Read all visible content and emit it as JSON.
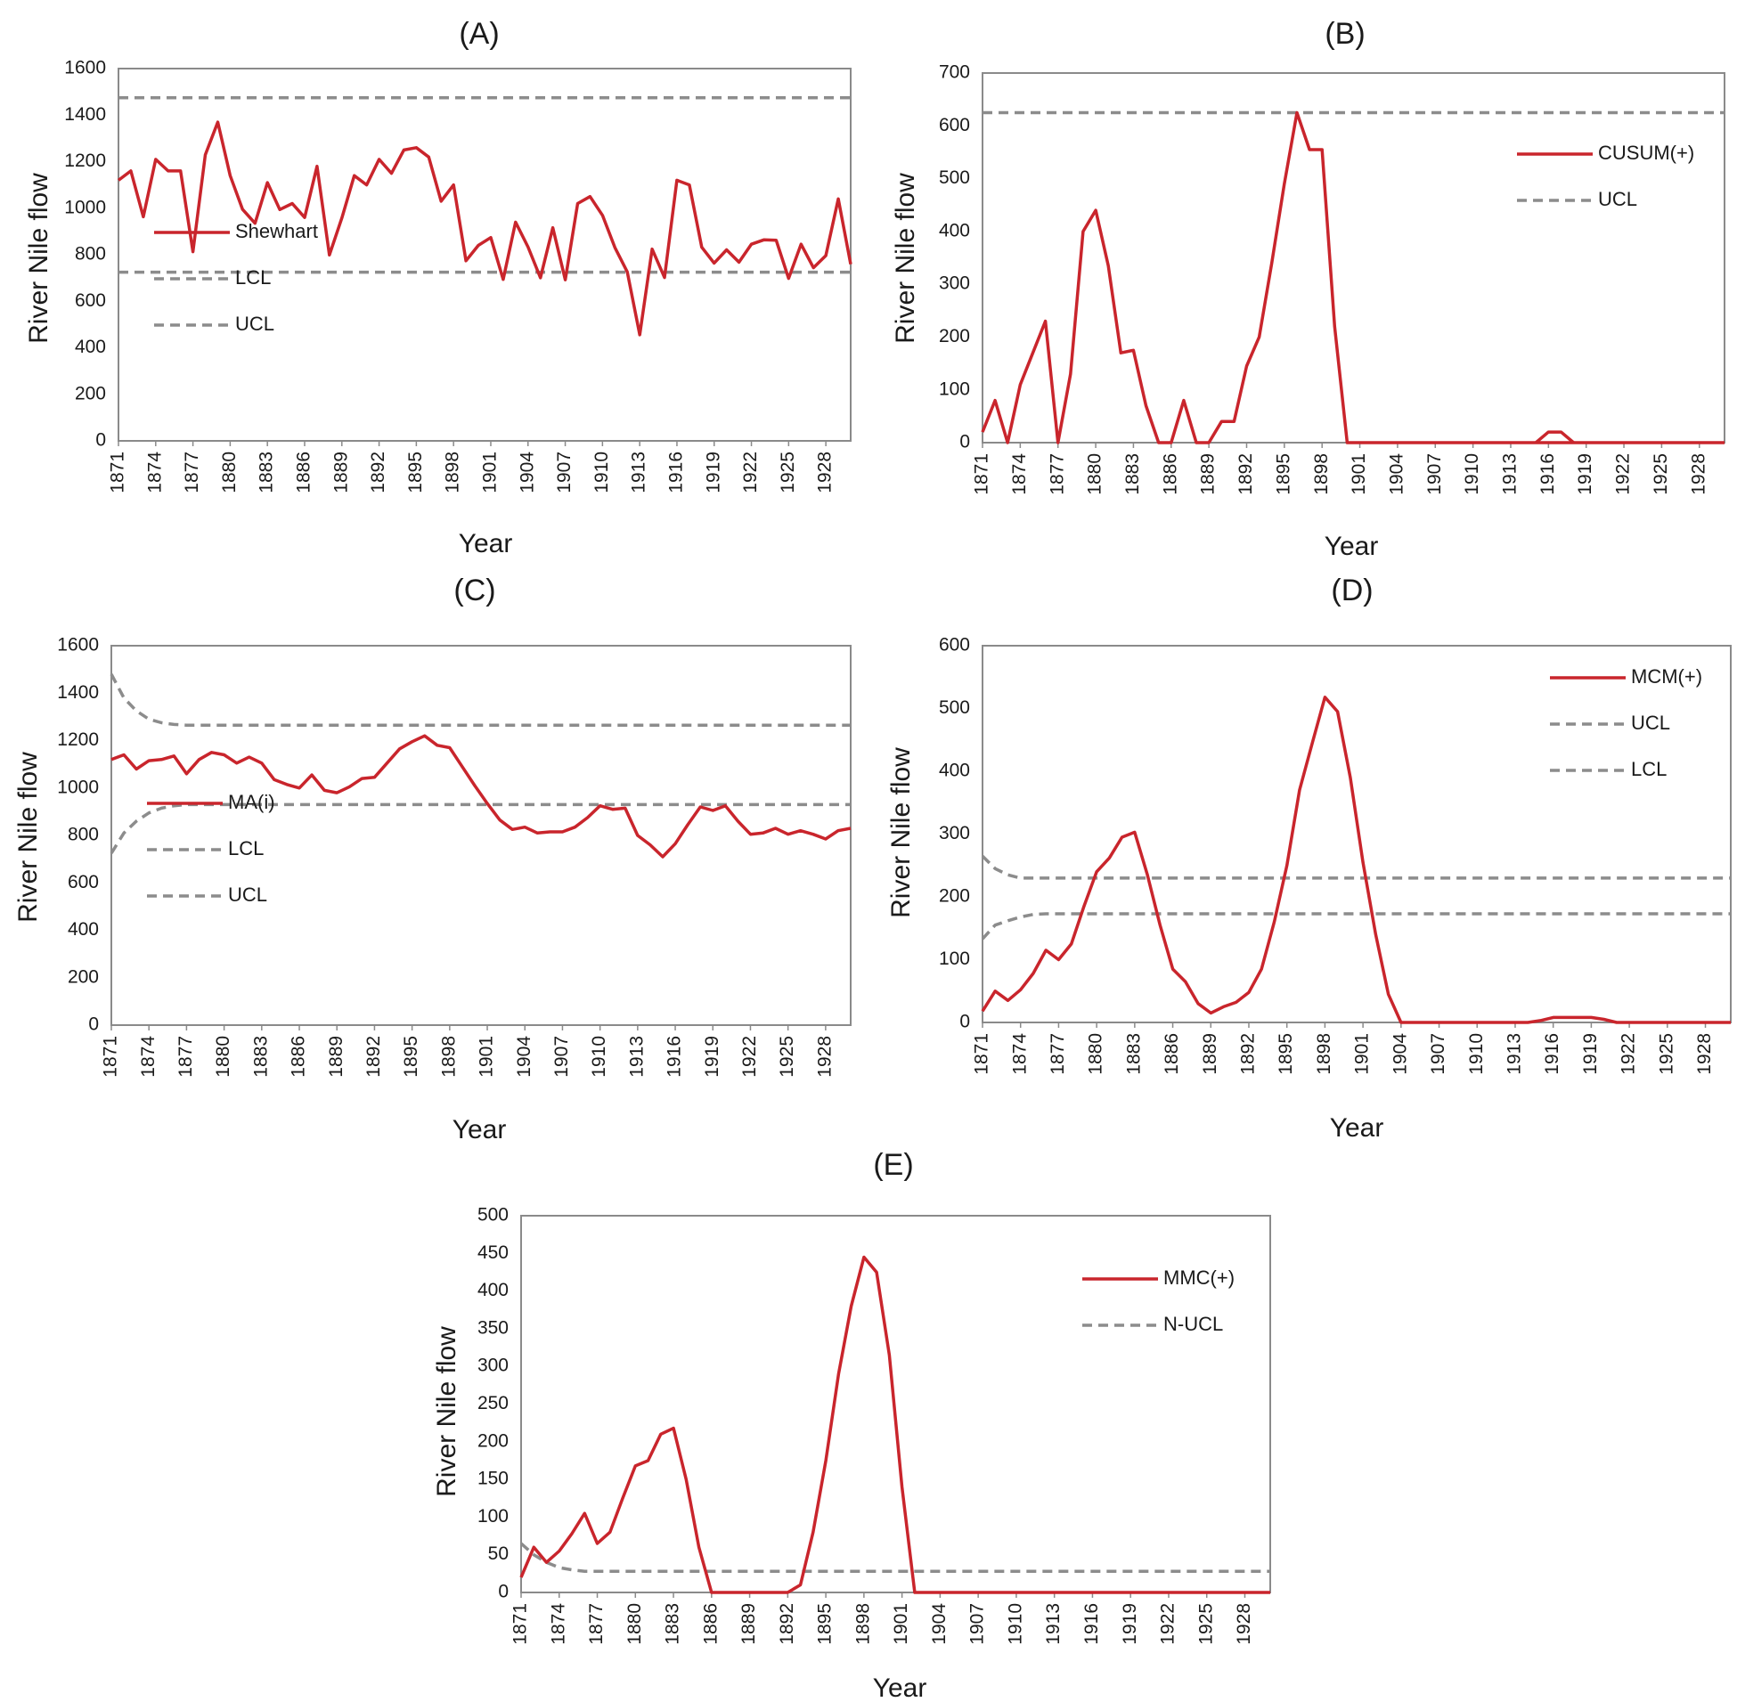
{
  "chart_data": [
    {
      "panel": "(A)",
      "type": "line",
      "ylabel": "River Nile flow",
      "xlabel": "Year",
      "ylim": [
        0,
        1600
      ],
      "yticks": [
        0,
        200,
        400,
        600,
        800,
        1000,
        1200,
        1400,
        1600
      ],
      "xtick_labels": [
        "1871",
        "1874",
        "1877",
        "1880",
        "1883",
        "1886",
        "1889",
        "1892",
        "1895",
        "1898",
        "1901",
        "1904",
        "1907",
        "1910",
        "1913",
        "1916",
        "1919",
        "1922",
        "1925",
        "1928"
      ],
      "legend_position": "bottom-left",
      "series": [
        {
          "name": "Shewhart",
          "style": "solid",
          "color": "#c9252c",
          "x": [
            1871,
            1872,
            1873,
            1874,
            1875,
            1876,
            1877,
            1878,
            1879,
            1880,
            1881,
            1882,
            1883,
            1884,
            1885,
            1886,
            1887,
            1888,
            1889,
            1890,
            1891,
            1892,
            1893,
            1894,
            1895,
            1896,
            1897,
            1898,
            1899,
            1900,
            1901,
            1902,
            1903,
            1904,
            1905,
            1906,
            1907,
            1908,
            1909,
            1910,
            1911,
            1912,
            1913,
            1914,
            1915,
            1916,
            1917,
            1918,
            1919,
            1920,
            1921,
            1922,
            1923,
            1924,
            1925,
            1926,
            1927,
            1928,
            1929,
            1930
          ],
          "y": [
            1120,
            1160,
            963,
            1210,
            1160,
            1160,
            813,
            1230,
            1370,
            1140,
            995,
            935,
            1110,
            994,
            1020,
            960,
            1180,
            799,
            958,
            1140,
            1100,
            1210,
            1150,
            1250,
            1260,
            1220,
            1030,
            1100,
            774,
            840,
            874,
            694,
            940,
            833,
            701,
            916,
            692,
            1020,
            1050,
            969,
            831,
            726,
            456,
            824,
            702,
            1120,
            1100,
            832,
            764,
            821,
            768,
            845,
            864,
            862,
            698,
            845,
            744,
            796,
            1040,
            759
          ]
        },
        {
          "name": "LCL",
          "style": "dashed",
          "color": "#8c8c8c",
          "x": [
            1871,
            1930
          ],
          "y": [
            725,
            725
          ]
        },
        {
          "name": "UCL",
          "style": "dashed",
          "color": "#8c8c8c",
          "x": [
            1871,
            1930
          ],
          "y": [
            1475,
            1475
          ]
        }
      ]
    },
    {
      "panel": "(B)",
      "type": "line",
      "ylabel": "River Nile flow",
      "xlabel": "Year",
      "ylim": [
        0,
        700
      ],
      "yticks": [
        0,
        100,
        200,
        300,
        400,
        500,
        600,
        700
      ],
      "xtick_labels": [
        "1871",
        "1874",
        "1877",
        "1880",
        "1883",
        "1886",
        "1889",
        "1892",
        "1895",
        "1898",
        "1901",
        "1904",
        "1907",
        "1910",
        "1913",
        "1916",
        "1919",
        "1922",
        "1925",
        "1928"
      ],
      "legend_position": "top-right",
      "series": [
        {
          "name": "CUSUM(+)",
          "style": "solid",
          "color": "#c9252c",
          "x": [
            1871,
            1872,
            1873,
            1874,
            1875,
            1876,
            1877,
            1878,
            1879,
            1880,
            1881,
            1882,
            1883,
            1884,
            1885,
            1886,
            1887,
            1888,
            1889,
            1890,
            1891,
            1892,
            1893,
            1894,
            1895,
            1896,
            1897,
            1898,
            1899,
            1900,
            1930
          ],
          "y": [
            20,
            80,
            0,
            110,
            170,
            230,
            0,
            130,
            400,
            440,
            335,
            170,
            175,
            70,
            0,
            0,
            80,
            0,
            0,
            40,
            40,
            145,
            200,
            340,
            490,
            625,
            555,
            555,
            220,
            0,
            0
          ],
          "extra": {
            "x": [
              1915,
              1916,
              1917,
              1918
            ],
            "y": [
              0,
              20,
              20,
              0
            ]
          }
        },
        {
          "name": "UCL",
          "style": "dashed",
          "color": "#8c8c8c",
          "x": [
            1871,
            1930
          ],
          "y": [
            625,
            625
          ]
        }
      ]
    },
    {
      "panel": "(C)",
      "type": "line",
      "ylabel": "River Nile flow",
      "xlabel": "Year",
      "ylim": [
        0,
        1600
      ],
      "yticks": [
        0,
        200,
        400,
        600,
        800,
        1000,
        1200,
        1400,
        1600
      ],
      "xtick_labels": [
        "1871",
        "1874",
        "1877",
        "1880",
        "1883",
        "1886",
        "1889",
        "1892",
        "1895",
        "1898",
        "1901",
        "1904",
        "1907",
        "1910",
        "1913",
        "1916",
        "1919",
        "1922",
        "1925",
        "1928"
      ],
      "legend_position": "bottom-left",
      "series": [
        {
          "name": "MA(i)",
          "style": "solid",
          "color": "#c9252c",
          "x": [
            1871,
            1872,
            1873,
            1874,
            1875,
            1876,
            1877,
            1878,
            1879,
            1880,
            1881,
            1882,
            1883,
            1884,
            1885,
            1886,
            1887,
            1888,
            1889,
            1890,
            1891,
            1892,
            1893,
            1894,
            1895,
            1896,
            1897,
            1898,
            1899,
            1900,
            1901,
            1902,
            1903,
            1904,
            1905,
            1906,
            1907,
            1908,
            1909,
            1910,
            1911,
            1912,
            1913,
            1914,
            1915,
            1916,
            1917,
            1918,
            1919,
            1920,
            1921,
            1922,
            1923,
            1924,
            1925,
            1926,
            1927,
            1928,
            1929,
            1930
          ],
          "y": [
            1120,
            1140,
            1080,
            1115,
            1120,
            1135,
            1060,
            1120,
            1150,
            1140,
            1105,
            1130,
            1105,
            1035,
            1015,
            1000,
            1055,
            990,
            980,
            1005,
            1040,
            1045,
            1105,
            1165,
            1195,
            1220,
            1180,
            1170,
            1090,
            1010,
            935,
            865,
            825,
            835,
            810,
            815,
            815,
            835,
            875,
            925,
            910,
            915,
            800,
            760,
            710,
            765,
            845,
            920,
            905,
            925,
            860,
            805,
            810,
            830,
            805,
            820,
            805,
            785,
            820,
            830
          ]
        },
        {
          "name": "LCL",
          "style": "dashed",
          "color": "#8c8c8c",
          "x": [
            1871,
            1872,
            1873,
            1874,
            1875,
            1876,
            1877,
            1878,
            1930
          ],
          "y": [
            725,
            810,
            860,
            895,
            915,
            925,
            930,
            930,
            930
          ]
        },
        {
          "name": "UCL",
          "style": "dashed",
          "color": "#8c8c8c",
          "x": [
            1871,
            1872,
            1873,
            1874,
            1875,
            1876,
            1877,
            1878,
            1930
          ],
          "y": [
            1480,
            1380,
            1325,
            1290,
            1275,
            1268,
            1265,
            1265,
            1265
          ]
        }
      ]
    },
    {
      "panel": "(D)",
      "type": "line",
      "ylabel": "River Nile flow",
      "xlabel": "Year",
      "ylim": [
        0,
        600
      ],
      "yticks": [
        0,
        100,
        200,
        300,
        400,
        500,
        600
      ],
      "xtick_labels": [
        "1871",
        "1874",
        "1877",
        "1880",
        "1883",
        "1886",
        "1889",
        "1892",
        "1895",
        "1898",
        "1901",
        "1904",
        "1907",
        "1910",
        "1913",
        "1916",
        "1919",
        "1922",
        "1925",
        "1928"
      ],
      "legend_position": "top-right",
      "series": [
        {
          "name": "MCM(+)",
          "style": "solid",
          "color": "#c9252c",
          "x": [
            1871,
            1872,
            1873,
            1874,
            1875,
            1876,
            1877,
            1878,
            1879,
            1880,
            1881,
            1882,
            1883,
            1884,
            1885,
            1886,
            1887,
            1888,
            1889,
            1890,
            1891,
            1892,
            1893,
            1894,
            1895,
            1896,
            1897,
            1898,
            1899,
            1900,
            1901,
            1902,
            1903,
            1904,
            1914,
            1915,
            1916,
            1917,
            1918,
            1919,
            1920,
            1921,
            1930
          ],
          "y": [
            18,
            50,
            35,
            52,
            78,
            115,
            100,
            125,
            185,
            240,
            262,
            295,
            303,
            235,
            155,
            85,
            65,
            30,
            15,
            25,
            32,
            48,
            85,
            160,
            250,
            370,
            445,
            518,
            495,
            390,
            255,
            140,
            45,
            0,
            0,
            3,
            8,
            8,
            8,
            8,
            5,
            0,
            0
          ]
        },
        {
          "name": "UCL",
          "style": "dashed",
          "color": "#8c8c8c",
          "x": [
            1871,
            1872,
            1873,
            1874,
            1875,
            1876,
            1930
          ],
          "y": [
            265,
            245,
            235,
            230,
            230,
            230,
            230
          ]
        },
        {
          "name": "LCL",
          "style": "dashed",
          "color": "#8c8c8c",
          "x": [
            1871,
            1872,
            1873,
            1874,
            1875,
            1876,
            1930
          ],
          "y": [
            133,
            155,
            162,
            168,
            172,
            173,
            173
          ]
        }
      ]
    },
    {
      "panel": "(E)",
      "type": "line",
      "ylabel": "River Nile flow",
      "xlabel": "Year",
      "ylim": [
        0,
        500
      ],
      "yticks": [
        0,
        50,
        100,
        150,
        200,
        250,
        300,
        350,
        400,
        450,
        500
      ],
      "xtick_labels": [
        "1871",
        "1874",
        "1877",
        "1880",
        "1883",
        "1886",
        "1889",
        "1892",
        "1895",
        "1898",
        "1901",
        "1904",
        "1907",
        "1910",
        "1913",
        "1916",
        "1919",
        "1922",
        "1925",
        "1928"
      ],
      "legend_position": "top-right",
      "series": [
        {
          "name": "MMC(+)",
          "style": "solid",
          "color": "#c9252c",
          "x": [
            1871,
            1872,
            1873,
            1874,
            1875,
            1876,
            1877,
            1878,
            1879,
            1880,
            1881,
            1882,
            1883,
            1884,
            1885,
            1886,
            1887,
            1891,
            1892,
            1893,
            1894,
            1895,
            1896,
            1897,
            1898,
            1899,
            1900,
            1901,
            1902,
            1930
          ],
          "y": [
            20,
            60,
            40,
            55,
            78,
            105,
            65,
            80,
            125,
            168,
            175,
            210,
            218,
            150,
            60,
            0,
            0,
            0,
            0,
            10,
            80,
            175,
            290,
            380,
            445,
            425,
            315,
            140,
            0,
            0
          ]
        },
        {
          "name": "N-UCL",
          "style": "dashed",
          "color": "#8c8c8c",
          "x": [
            1871,
            1872,
            1873,
            1874,
            1875,
            1876,
            1930
          ],
          "y": [
            65,
            50,
            40,
            33,
            30,
            28,
            28
          ]
        }
      ]
    }
  ]
}
